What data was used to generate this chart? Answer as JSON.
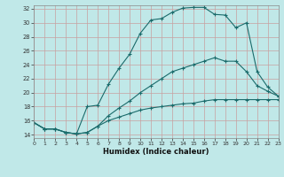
{
  "xlabel": "Humidex (Indice chaleur)",
  "bg_color": "#c0e8e8",
  "line_color": "#1a6b6b",
  "grid_color_v": "#c8a0a0",
  "grid_color_h": "#c8a0a0",
  "xlim": [
    0,
    23
  ],
  "ylim": [
    13.5,
    32.5
  ],
  "xticks": [
    0,
    1,
    2,
    3,
    4,
    5,
    6,
    7,
    8,
    9,
    10,
    11,
    12,
    13,
    14,
    15,
    16,
    17,
    18,
    19,
    20,
    21,
    22,
    23
  ],
  "yticks": [
    14,
    16,
    18,
    20,
    22,
    24,
    26,
    28,
    30,
    32
  ],
  "curve1_x": [
    0,
    1,
    2,
    3,
    4,
    5,
    6,
    7,
    8,
    9,
    10,
    11,
    12,
    13,
    14,
    15,
    16,
    17,
    18,
    19,
    20,
    21,
    22,
    23
  ],
  "curve1_y": [
    15.7,
    14.8,
    14.8,
    14.3,
    14.1,
    18.0,
    18.2,
    21.2,
    23.5,
    25.5,
    28.5,
    30.4,
    30.6,
    31.5,
    32.1,
    32.2,
    32.2,
    31.2,
    31.1,
    29.3,
    30.0,
    23.0,
    20.8,
    19.5
  ],
  "curve2_x": [
    0,
    1,
    2,
    3,
    4,
    5,
    6,
    7,
    8,
    9,
    10,
    11,
    12,
    13,
    14,
    15,
    16,
    17,
    18,
    19,
    20,
    21,
    22,
    23
  ],
  "curve2_y": [
    15.7,
    14.8,
    14.8,
    14.3,
    14.1,
    14.3,
    15.2,
    16.7,
    17.8,
    18.8,
    20.0,
    21.0,
    22.0,
    23.0,
    23.5,
    24.0,
    24.5,
    25.0,
    24.5,
    24.5,
    23.0,
    21.0,
    20.2,
    19.5
  ],
  "curve3_x": [
    0,
    1,
    2,
    3,
    4,
    5,
    6,
    7,
    8,
    9,
    10,
    11,
    12,
    13,
    14,
    15,
    16,
    17,
    18,
    19,
    20,
    21,
    22,
    23
  ],
  "curve3_y": [
    15.7,
    14.8,
    14.8,
    14.3,
    14.1,
    14.3,
    15.2,
    16.0,
    16.5,
    17.0,
    17.5,
    17.8,
    18.0,
    18.2,
    18.4,
    18.5,
    18.8,
    19.0,
    19.0,
    19.0,
    19.0,
    19.0,
    19.0,
    19.0
  ]
}
